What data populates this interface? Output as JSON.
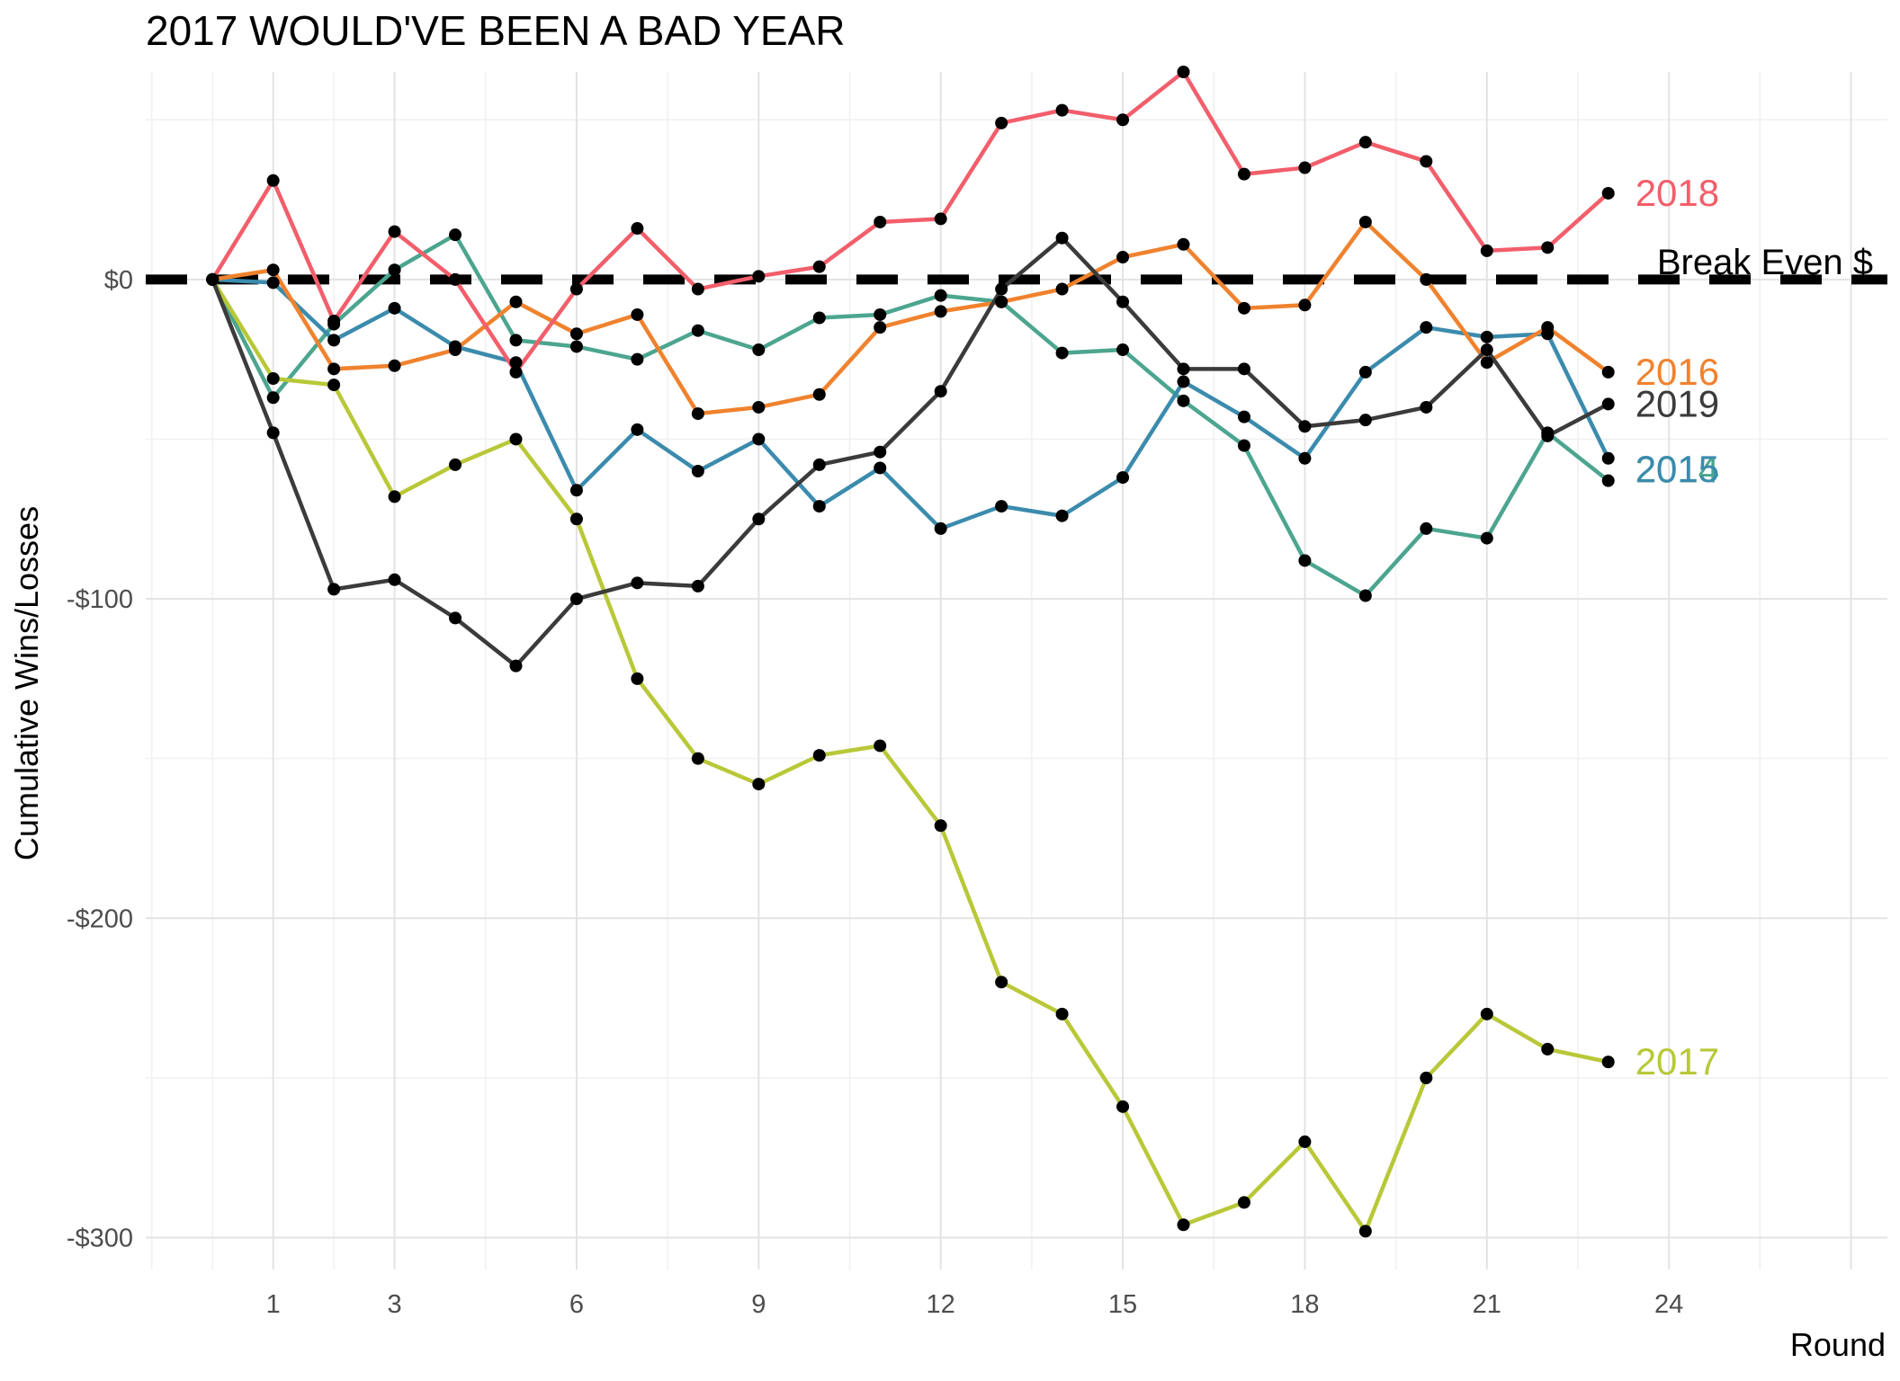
{
  "chart_data": {
    "type": "line",
    "title": "2017 WOULD'VE BEEN A BAD YEAR",
    "xlabel": "Round",
    "ylabel": "Cumulative Wins/Losses",
    "xlim": [
      -1.1,
      27.6
    ],
    "ylim": [
      -310,
      65
    ],
    "x_ticks": [
      1,
      3,
      6,
      9,
      12,
      15,
      18,
      21,
      24
    ],
    "x_tick_labels": [
      "1",
      "3",
      "6",
      "9",
      "12",
      "15",
      "18",
      "21",
      "24"
    ],
    "y_ticks": [
      0,
      -100,
      -200,
      -300
    ],
    "y_tick_labels": [
      "$0",
      "-$100",
      "-$200",
      "-$300"
    ],
    "grid": true,
    "x": [
      0,
      1,
      2,
      3,
      4,
      5,
      6,
      7,
      8,
      9,
      10,
      11,
      12,
      13,
      14,
      15,
      16,
      17,
      18,
      19,
      20,
      21,
      22,
      23
    ],
    "series": [
      {
        "name": "2014",
        "color": "#4ca58f",
        "label_offset": -1,
        "values": [
          0,
          -37,
          -14,
          3,
          14,
          -19,
          -21,
          -25,
          -16,
          -22,
          -12,
          -11,
          -5,
          -7,
          -23,
          -22,
          -38,
          -52,
          -88,
          -99,
          -78,
          -81,
          -48,
          -63
        ]
      },
      {
        "name": "2015",
        "color": "#3b8bad",
        "label_offset": 1,
        "values": [
          0,
          -1,
          -19,
          -9,
          -21,
          -26,
          -66,
          -47,
          -60,
          -50,
          -71,
          -59,
          -78,
          -71,
          -74,
          -62,
          -32,
          -43,
          -56,
          -29,
          -15,
          -18,
          -17,
          -56
        ]
      },
      {
        "name": "2016",
        "color": "#f0822e",
        "label_offset": 0,
        "values": [
          0,
          3,
          -28,
          -27,
          -22,
          -7,
          -17,
          -11,
          -42,
          -40,
          -36,
          -15,
          -10,
          -7,
          -3,
          7,
          11,
          -9,
          -8,
          18,
          0,
          -26,
          -15,
          -29
        ]
      },
      {
        "name": "2017",
        "color": "#b8c838",
        "label_offset": 0,
        "values": [
          0,
          -31,
          -33,
          -68,
          -58,
          -50,
          -75,
          -125,
          -150,
          -158,
          -149,
          -146,
          -171,
          -220,
          -230,
          -259,
          -296,
          -289,
          -270,
          -298,
          -250,
          -230,
          -241,
          -245
        ]
      },
      {
        "name": "2018",
        "color": "#f25e6b",
        "label_offset": 0,
        "values": [
          0,
          31,
          -13,
          15,
          0,
          -29,
          -3,
          16,
          -3,
          1,
          4,
          18,
          19,
          49,
          53,
          50,
          65,
          33,
          35,
          43,
          37,
          9,
          10,
          27
        ]
      },
      {
        "name": "2019",
        "color": "#3b3b3b",
        "label_offset": 0,
        "values": [
          0,
          -48,
          -97,
          -94,
          -106,
          -121,
          -100,
          -95,
          -96,
          -75,
          -58,
          -54,
          -35,
          -3,
          13,
          -7,
          -28,
          -28,
          -46,
          -44,
          -40,
          -22,
          -49,
          -39
        ]
      }
    ],
    "reference_line": {
      "y": 0,
      "label": "Break Even $",
      "style": "dashed"
    }
  }
}
